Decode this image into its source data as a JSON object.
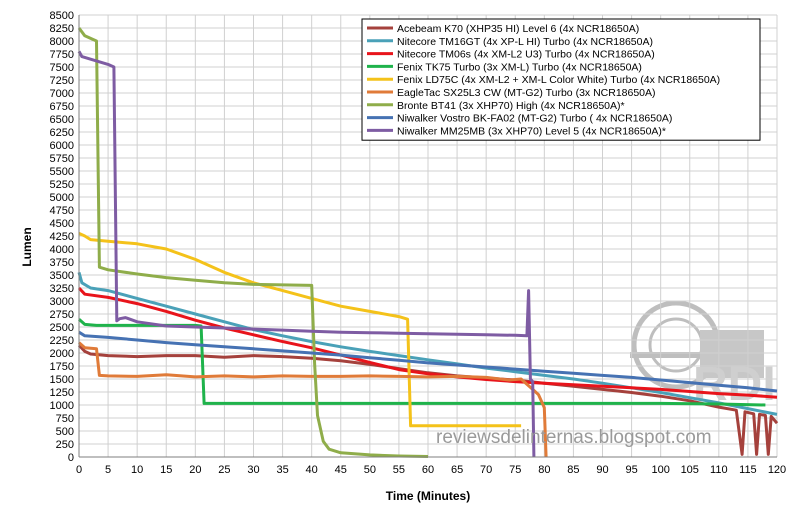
{
  "chart_data": {
    "type": "line",
    "title": "",
    "xlabel": "Time (Minutes)",
    "ylabel": "Lumen",
    "xlim": [
      0,
      120
    ],
    "ylim": [
      0,
      8500
    ],
    "x_ticks": [
      0,
      5,
      10,
      15,
      20,
      25,
      30,
      35,
      40,
      45,
      50,
      55,
      60,
      65,
      70,
      75,
      80,
      85,
      90,
      95,
      100,
      105,
      110,
      115,
      120
    ],
    "y_ticks": [
      0,
      250,
      500,
      750,
      1000,
      1250,
      1500,
      1750,
      2000,
      2250,
      2500,
      2750,
      3000,
      3250,
      3500,
      3750,
      4000,
      4250,
      4500,
      4750,
      5000,
      5250,
      5500,
      5750,
      6000,
      6250,
      6500,
      6750,
      7000,
      7250,
      7500,
      7750,
      8000,
      8250,
      8500
    ],
    "grid": true,
    "legend_position": "top-right",
    "watermark": "reviewsdelinternas.blogspot.com",
    "series": [
      {
        "name": "Acebeam K70 (XHP35 HI) Level 6 (4x NCR18650A)",
        "color": "#a5413c",
        "points": [
          [
            0,
            2150
          ],
          [
            1,
            2030
          ],
          [
            2,
            1980
          ],
          [
            5,
            1950
          ],
          [
            10,
            1930
          ],
          [
            15,
            1950
          ],
          [
            20,
            1950
          ],
          [
            25,
            1920
          ],
          [
            30,
            1950
          ],
          [
            35,
            1930
          ],
          [
            40,
            1900
          ],
          [
            45,
            1850
          ],
          [
            50,
            1780
          ],
          [
            55,
            1700
          ],
          [
            60,
            1620
          ],
          [
            65,
            1560
          ],
          [
            70,
            1520
          ],
          [
            75,
            1480
          ],
          [
            80,
            1420
          ],
          [
            85,
            1360
          ],
          [
            90,
            1300
          ],
          [
            95,
            1240
          ],
          [
            100,
            1170
          ],
          [
            105,
            1080
          ],
          [
            110,
            960
          ],
          [
            113,
            900
          ],
          [
            114,
            50
          ],
          [
            114.5,
            870
          ],
          [
            116,
            830
          ],
          [
            116.5,
            50
          ],
          [
            117,
            820
          ],
          [
            118,
            800
          ],
          [
            118.5,
            50
          ],
          [
            119,
            780
          ],
          [
            120,
            650
          ]
        ]
      },
      {
        "name": "Nitecore TM16GT (4x XP-L HI) Turbo (4x NCR18650A)",
        "color": "#4aa1b8",
        "points": [
          [
            0,
            3550
          ],
          [
            0.5,
            3350
          ],
          [
            2,
            3250
          ],
          [
            5,
            3200
          ],
          [
            10,
            3050
          ],
          [
            15,
            2900
          ],
          [
            20,
            2750
          ],
          [
            25,
            2600
          ],
          [
            30,
            2450
          ],
          [
            35,
            2330
          ],
          [
            40,
            2220
          ],
          [
            45,
            2120
          ],
          [
            50,
            2030
          ],
          [
            55,
            1950
          ],
          [
            60,
            1870
          ],
          [
            65,
            1790
          ],
          [
            70,
            1710
          ],
          [
            75,
            1640
          ],
          [
            80,
            1570
          ],
          [
            85,
            1500
          ],
          [
            90,
            1420
          ],
          [
            95,
            1330
          ],
          [
            100,
            1240
          ],
          [
            105,
            1140
          ],
          [
            110,
            1040
          ],
          [
            115,
            930
          ],
          [
            120,
            820
          ]
        ]
      },
      {
        "name": "Nitecore TM06s (4x XM-L2 U3) Turbo (4x NCR18650A)",
        "color": "#e8141b",
        "points": [
          [
            0,
            3250
          ],
          [
            1,
            3130
          ],
          [
            5,
            3070
          ],
          [
            10,
            2950
          ],
          [
            15,
            2800
          ],
          [
            20,
            2630
          ],
          [
            25,
            2480
          ],
          [
            30,
            2350
          ],
          [
            35,
            2220
          ],
          [
            40,
            2100
          ],
          [
            45,
            1960
          ],
          [
            50,
            1820
          ],
          [
            55,
            1680
          ],
          [
            60,
            1600
          ],
          [
            65,
            1540
          ],
          [
            70,
            1490
          ],
          [
            75,
            1450
          ],
          [
            80,
            1420
          ],
          [
            85,
            1390
          ],
          [
            90,
            1360
          ],
          [
            95,
            1330
          ],
          [
            100,
            1300
          ],
          [
            105,
            1260
          ],
          [
            110,
            1220
          ],
          [
            115,
            1190
          ],
          [
            120,
            1150
          ]
        ]
      },
      {
        "name": "Fenix TK75 Turbo (3x XM-L) Turbo (4x NCR18650A)",
        "color": "#1fb34b",
        "points": [
          [
            0,
            2650
          ],
          [
            1,
            2550
          ],
          [
            3,
            2530
          ],
          [
            10,
            2530
          ],
          [
            15,
            2530
          ],
          [
            20,
            2530
          ],
          [
            21,
            2520
          ],
          [
            21.5,
            1030
          ],
          [
            25,
            1030
          ],
          [
            40,
            1030
          ],
          [
            60,
            1030
          ],
          [
            80,
            1030
          ],
          [
            100,
            1030
          ],
          [
            110,
            1020
          ],
          [
            118,
            1000
          ]
        ]
      },
      {
        "name": "Fenix LD75C (4x XM-L2 + XM-L Color White) Turbo (4x NCR18650A)",
        "color": "#f4c21a",
        "points": [
          [
            0,
            4300
          ],
          [
            1,
            4250
          ],
          [
            2,
            4180
          ],
          [
            5,
            4150
          ],
          [
            10,
            4100
          ],
          [
            15,
            4000
          ],
          [
            20,
            3800
          ],
          [
            25,
            3550
          ],
          [
            30,
            3350
          ],
          [
            35,
            3200
          ],
          [
            40,
            3050
          ],
          [
            45,
            2900
          ],
          [
            50,
            2800
          ],
          [
            55,
            2700
          ],
          [
            56.5,
            2650
          ],
          [
            57,
            600
          ],
          [
            60,
            600
          ],
          [
            65,
            600
          ],
          [
            70,
            600
          ],
          [
            75,
            600
          ],
          [
            76,
            600
          ]
        ]
      },
      {
        "name": "EagleTac SX25L3 CW (MT-G2) Turbo (3x NCR18650A)",
        "color": "#e07b39",
        "points": [
          [
            0,
            2200
          ],
          [
            1,
            2100
          ],
          [
            3,
            2080
          ],
          [
            3.5,
            1570
          ],
          [
            5,
            1560
          ],
          [
            10,
            1550
          ],
          [
            15,
            1580
          ],
          [
            20,
            1540
          ],
          [
            25,
            1560
          ],
          [
            30,
            1540
          ],
          [
            35,
            1560
          ],
          [
            40,
            1550
          ],
          [
            45,
            1550
          ],
          [
            50,
            1560
          ],
          [
            55,
            1550
          ],
          [
            60,
            1540
          ],
          [
            65,
            1550
          ],
          [
            70,
            1530
          ],
          [
            74,
            1480
          ],
          [
            76,
            1500
          ],
          [
            77,
            1400
          ],
          [
            78,
            1300
          ],
          [
            79,
            1200
          ],
          [
            80,
            950
          ],
          [
            80.3,
            0
          ]
        ]
      },
      {
        "name": "Bronte BT41 (3x XHP70) High (4x NCR18650A)*",
        "color": "#8fad4a",
        "points": [
          [
            0,
            8250
          ],
          [
            1,
            8100
          ],
          [
            3,
            8000
          ],
          [
            3.5,
            3650
          ],
          [
            5,
            3600
          ],
          [
            10,
            3520
          ],
          [
            15,
            3450
          ],
          [
            20,
            3400
          ],
          [
            25,
            3350
          ],
          [
            30,
            3320
          ],
          [
            35,
            3310
          ],
          [
            40,
            3300
          ],
          [
            40.5,
            1800
          ],
          [
            41,
            800
          ],
          [
            42,
            300
          ],
          [
            43,
            150
          ],
          [
            45,
            80
          ],
          [
            50,
            40
          ],
          [
            55,
            20
          ],
          [
            60,
            10
          ]
        ]
      },
      {
        "name": "Niwalker Vostro BK-FA02 (MT-G2) Turbo ( 4x NCR18650A)",
        "color": "#4672b3",
        "points": [
          [
            0,
            2400
          ],
          [
            1,
            2330
          ],
          [
            5,
            2300
          ],
          [
            10,
            2250
          ],
          [
            15,
            2200
          ],
          [
            20,
            2160
          ],
          [
            25,
            2120
          ],
          [
            30,
            2080
          ],
          [
            35,
            2040
          ],
          [
            40,
            2000
          ],
          [
            45,
            1960
          ],
          [
            50,
            1910
          ],
          [
            55,
            1860
          ],
          [
            60,
            1810
          ],
          [
            65,
            1770
          ],
          [
            70,
            1730
          ],
          [
            75,
            1690
          ],
          [
            80,
            1650
          ],
          [
            85,
            1610
          ],
          [
            90,
            1570
          ],
          [
            95,
            1530
          ],
          [
            100,
            1480
          ],
          [
            105,
            1430
          ],
          [
            110,
            1380
          ],
          [
            115,
            1330
          ],
          [
            120,
            1270
          ]
        ]
      },
      {
        "name": "Niwalker MM25MB (3x XHP70) Level 5 (4x NCR18650A)*",
        "color": "#7e5ca3",
        "points": [
          [
            0,
            7800
          ],
          [
            0.5,
            7700
          ],
          [
            2,
            7650
          ],
          [
            5,
            7550
          ],
          [
            6,
            7500
          ],
          [
            6.5,
            2620
          ],
          [
            7,
            2660
          ],
          [
            8,
            2680
          ],
          [
            10,
            2600
          ],
          [
            15,
            2520
          ],
          [
            20,
            2500
          ],
          [
            25,
            2480
          ],
          [
            30,
            2460
          ],
          [
            35,
            2440
          ],
          [
            40,
            2420
          ],
          [
            45,
            2400
          ],
          [
            50,
            2390
          ],
          [
            55,
            2380
          ],
          [
            60,
            2370
          ],
          [
            65,
            2360
          ],
          [
            70,
            2350
          ],
          [
            75,
            2340
          ],
          [
            77,
            2330
          ],
          [
            77.3,
            3200
          ],
          [
            77.6,
            1500
          ],
          [
            78,
            1450
          ],
          [
            78.2,
            0
          ]
        ]
      }
    ]
  }
}
